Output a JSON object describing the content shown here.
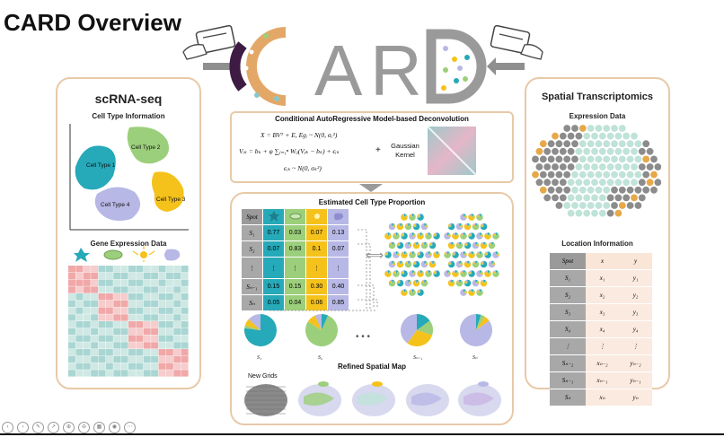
{
  "title": "CARD Overview",
  "logo": "CARD",
  "left_panel": {
    "title": "scRNA-seq",
    "cell_type_heading": "Cell Type Information",
    "cell_types": [
      "Cell Type 1",
      "Cell Type 2",
      "Cell Type 3",
      "Cell Type 4"
    ],
    "gene_heading": "Gene Expression Data"
  },
  "model": {
    "title": "Conditional AutoRegressive Model-based Deconvolution",
    "eq1": "X = BVᵀ + E, Eɡᵢ ~ N(0, σₑ²)",
    "eq2": "Vᵢₖ = bₖ + φ ∑ⱼ₌₁ⁿ Wᵢⱼ(Vⱼₖ − bₖ) + ϵᵢₖ",
    "eq3": "ϵᵢₖ ~ N(0, σₖ²)",
    "plus": "+",
    "kernel_label": "Gaussian Kernel"
  },
  "proportion": {
    "title": "Estimated Cell Type Proportion",
    "header": "Spot",
    "rows": [
      {
        "spot": "S₁",
        "values": [
          "0.77",
          "0.03",
          "0.07",
          "0.13"
        ]
      },
      {
        "spot": "S₂",
        "values": [
          "0.07",
          "0.83",
          "0.1",
          "0.07"
        ]
      },
      {
        "spot": "⋮",
        "values": [
          "⋮",
          "⋮",
          "⋮",
          "⋮"
        ]
      },
      {
        "spot": "Sₙ₋₁",
        "values": [
          "0.15",
          "0.15",
          "0.30",
          "0.40"
        ]
      },
      {
        "spot": "Sₙ",
        "values": [
          "0.05",
          "0.04",
          "0.06",
          "0.85"
        ]
      }
    ],
    "pie_labels": [
      "S₁",
      "S₂",
      "Sₙ₋₁",
      "Sₙ"
    ],
    "ellipsis": "• • •",
    "arrow": "⟺"
  },
  "refined": {
    "title": "Refined Spatial Map",
    "new_grids": "New Grids"
  },
  "right_panel": {
    "title": "Spatial Transcriptomics",
    "expression_heading": "Expression Data",
    "location_heading": "Location Information",
    "table_header": [
      "Spot",
      "x",
      "y"
    ],
    "rows": [
      [
        "S₁",
        "x₁",
        "y₁"
      ],
      [
        "S₂",
        "x₂",
        "y₂"
      ],
      [
        "S₃",
        "x₃",
        "y₃"
      ],
      [
        "S₄",
        "x₄",
        "y₄"
      ],
      [
        "⋮",
        "⋮",
        "⋮"
      ],
      [
        "Sₙ₋₂",
        "xₙ₋₂",
        "yₙ₋₂"
      ],
      [
        "Sₙ₋₁",
        "xₙ₋₁",
        "yₙ₋₁"
      ],
      [
        "Sₙ",
        "xₙ",
        "yₙ"
      ]
    ]
  },
  "colors": {
    "teal": "#26a9b8",
    "green": "#9ccf7b",
    "yellow": "#f5c21b",
    "lavender": "#b8b8e6",
    "gray": "#8c8c8c",
    "orange": "#e7a84a",
    "mint": "#bfe3d8",
    "panel_border": "#e8c9a8"
  },
  "toolbar_icons": [
    "prev-icon",
    "next-icon",
    "pen-icon",
    "pointer-icon",
    "zoom-icon",
    "zoom-out-icon",
    "grid-icon",
    "camera-icon",
    "more-icon"
  ]
}
